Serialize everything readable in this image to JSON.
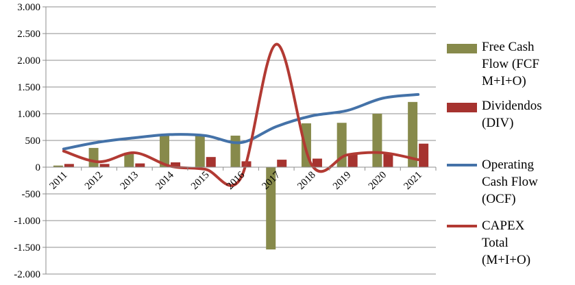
{
  "chart_data": {
    "type": "bar",
    "categories": [
      "2011",
      "2012",
      "2013",
      "2014",
      "2015",
      "2016",
      "2017",
      "2018",
      "2019",
      "2020",
      "2021"
    ],
    "ylim": [
      -2000,
      3000
    ],
    "yticks": [
      3000,
      2500,
      2000,
      1500,
      1000,
      500,
      0,
      -500,
      -1000,
      -1500,
      -2000
    ],
    "ytick_labels": [
      "3.000",
      "2.500",
      "2.000",
      "1.500",
      "1.000",
      "500",
      "0",
      "-500",
      "-1.000",
      "-1.500",
      "-2.000"
    ],
    "grid": true,
    "legend_position": "right",
    "series": [
      {
        "name": "Free Cash Flow (FCF M+I+O)",
        "legend_lines": [
          "Free Cash",
          "Flow (FCF",
          "M+I+O)"
        ],
        "kind": "bar",
        "color": "#878A4B",
        "values": [
          30,
          360,
          270,
          590,
          610,
          590,
          -1540,
          820,
          830,
          1000,
          1220
        ]
      },
      {
        "name": "Dividendos (DIV)",
        "legend_lines": [
          "Dividendos",
          "(DIV)"
        ],
        "kind": "bar",
        "color": "#A6332F",
        "values": [
          60,
          60,
          70,
          90,
          190,
          110,
          140,
          160,
          240,
          250,
          440
        ]
      },
      {
        "name": "Operating Cash Flow (OCF)",
        "legend_lines": [
          "Operating",
          "Cash Flow",
          "(OCF)"
        ],
        "kind": "line",
        "color": "#4472A8",
        "values": [
          340,
          470,
          550,
          610,
          590,
          460,
          760,
          960,
          1060,
          1290,
          1360
        ]
      },
      {
        "name": "CAPEX Total (M+I+O)",
        "legend_lines": [
          "CAPEX",
          "Total",
          "(M+I+O)"
        ],
        "kind": "line",
        "color": "#B23A33",
        "values": [
          300,
          100,
          270,
          20,
          -40,
          -200,
          2300,
          40,
          230,
          270,
          140
        ]
      }
    ]
  }
}
